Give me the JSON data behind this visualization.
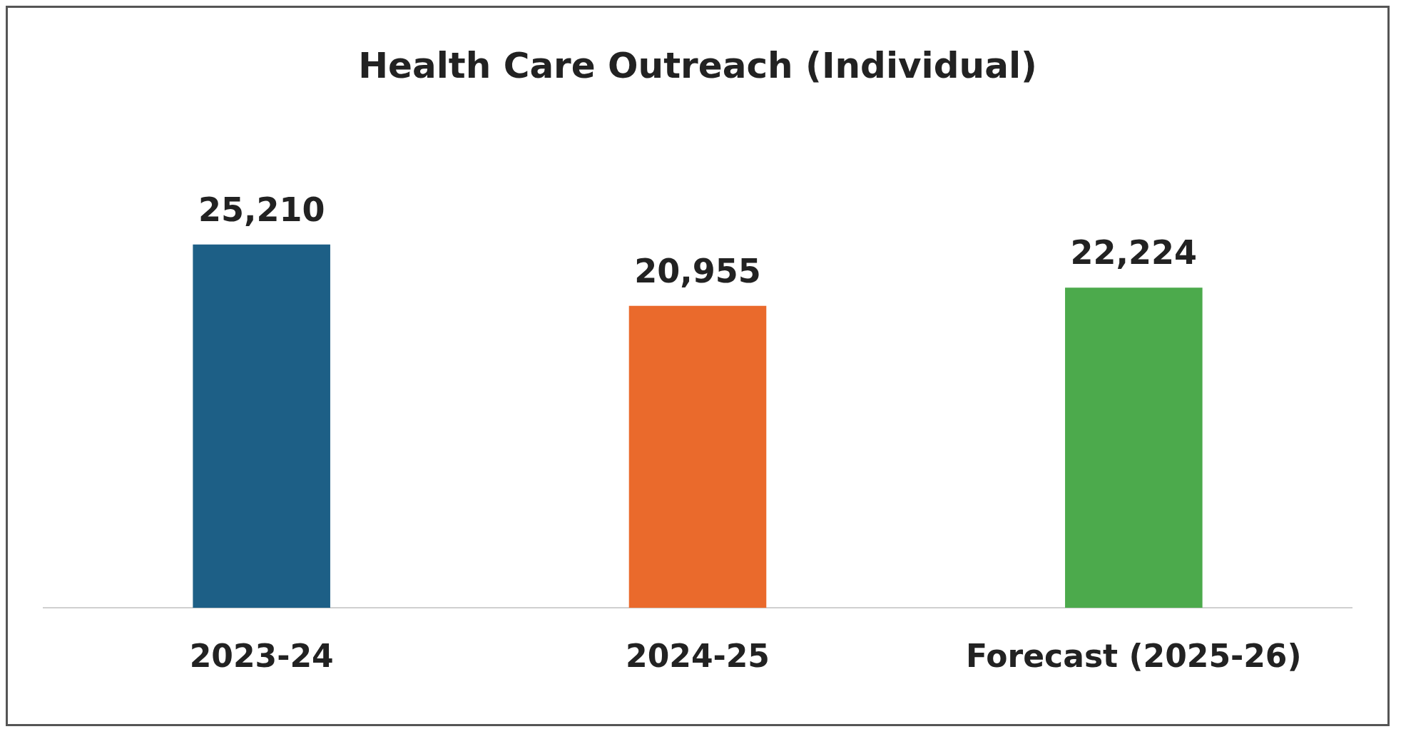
{
  "chart_data": {
    "type": "bar",
    "title": "Health Care Outreach (Individual)",
    "categories": [
      "2023-24",
      "2024-25",
      "Forecast (2025-26)"
    ],
    "values": [
      25210,
      20955,
      22224
    ],
    "colors": [
      "#1d5f86",
      "#ea6a2c",
      "#4caa4c"
    ],
    "value_labels": [
      "25,210",
      "20,955",
      "22,224"
    ],
    "grid": false,
    "legend": false
  }
}
